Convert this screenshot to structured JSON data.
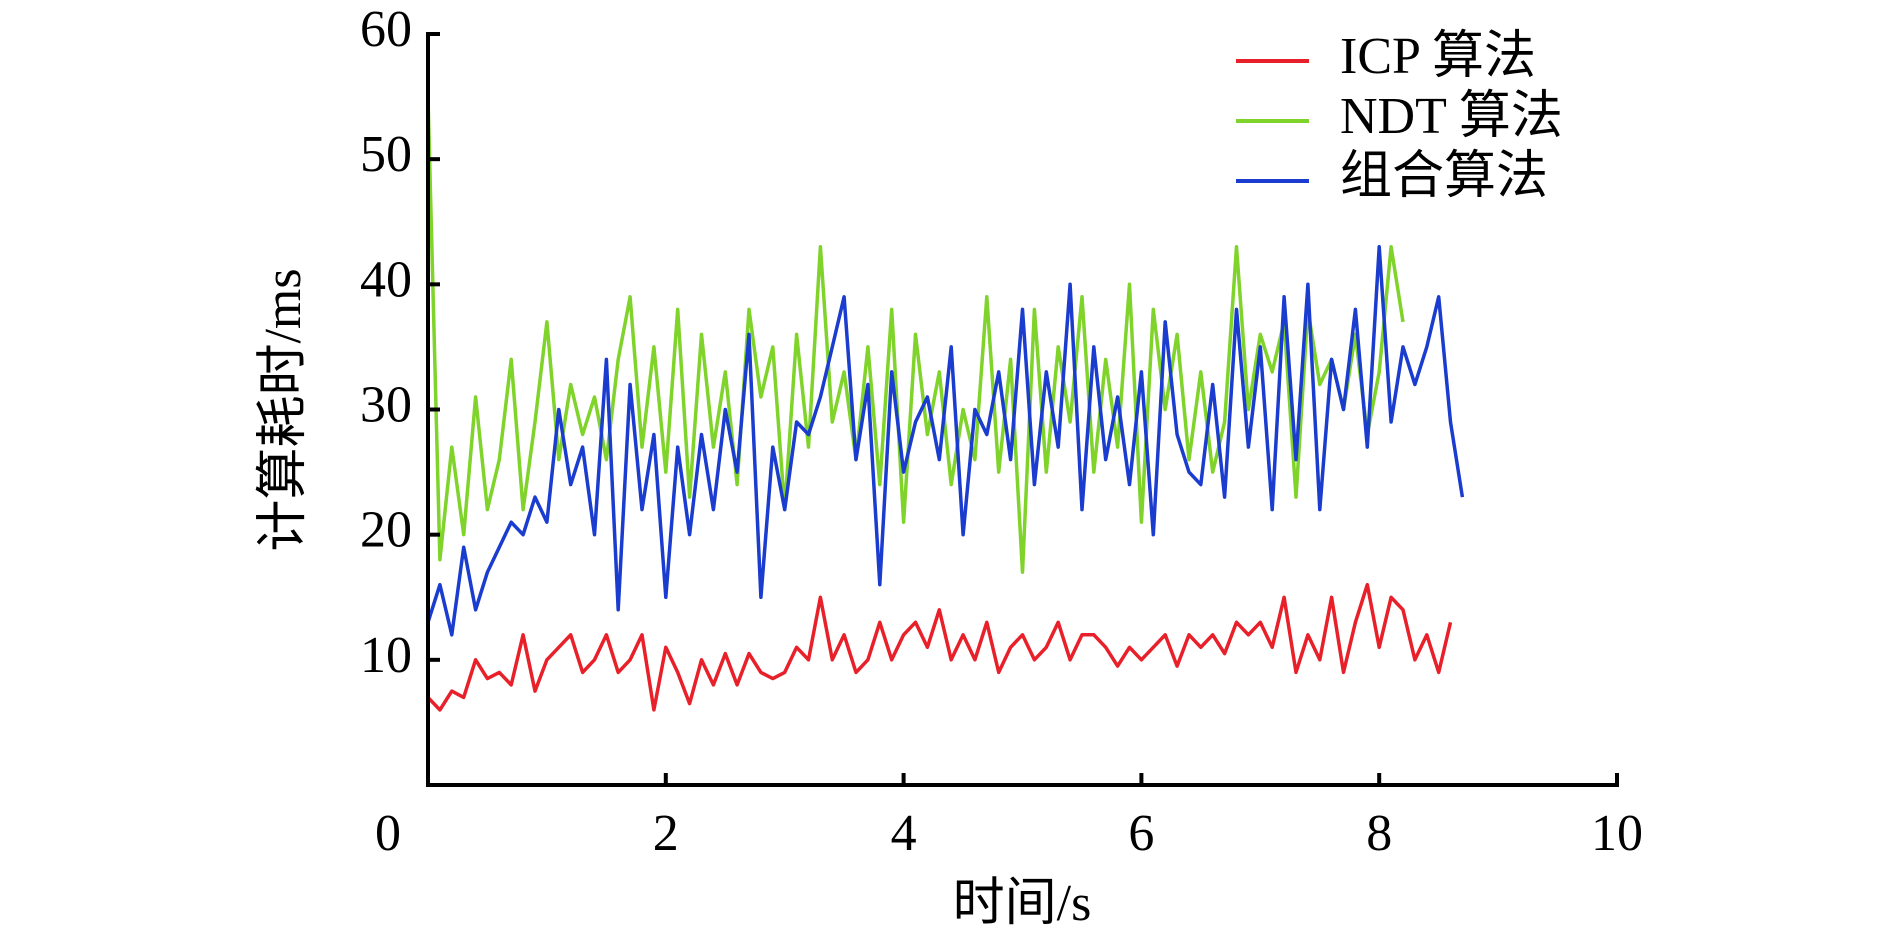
{
  "chart_data": {
    "type": "line",
    "xlabel": "时间/s",
    "ylabel": "计算耗时/ms",
    "x": [
      0,
      0.1,
      0.2,
      0.3,
      0.4,
      0.5,
      0.6,
      0.7,
      0.8,
      0.9,
      1,
      1.1,
      1.2,
      1.3,
      1.4,
      1.5,
      1.6,
      1.7,
      1.8,
      1.9,
      2,
      2.1,
      2.2,
      2.3,
      2.4,
      2.5,
      2.6,
      2.7,
      2.8,
      2.9,
      3,
      3.1,
      3.2,
      3.3,
      3.4,
      3.5,
      3.6,
      3.7,
      3.8,
      3.9,
      4,
      4.1,
      4.2,
      4.3,
      4.4,
      4.5,
      4.6,
      4.7,
      4.8,
      4.9,
      5,
      5.1,
      5.2,
      5.3,
      5.4,
      5.5,
      5.6,
      5.7,
      5.8,
      5.9,
      6,
      6.1,
      6.2,
      6.3,
      6.4,
      6.5,
      6.6,
      6.7,
      6.8,
      6.9,
      7,
      7.1,
      7.2,
      7.3,
      7.4,
      7.5,
      7.6,
      7.7,
      7.8,
      7.9,
      8,
      8.1,
      8.2,
      8.3,
      8.4,
      8.5,
      8.6,
      8.7
    ],
    "series": [
      {
        "name": "ICP 算法",
        "color": "#e8202a",
        "values": [
          7,
          6,
          7.5,
          7,
          10,
          8.5,
          9,
          8,
          12,
          7.5,
          10,
          11,
          12,
          9,
          10,
          12,
          9,
          10,
          12,
          6,
          11,
          9,
          6.5,
          10,
          8,
          10.5,
          8,
          10.5,
          9,
          8.5,
          9,
          11,
          10,
          15,
          10,
          12,
          9,
          10,
          13,
          10,
          12,
          13,
          11,
          14,
          10,
          12,
          10,
          13,
          9,
          11,
          12,
          10,
          11,
          13,
          10,
          12,
          12,
          11,
          9.5,
          11,
          10,
          11,
          12,
          9.5,
          12,
          11,
          12,
          10.5,
          13,
          12,
          13,
          11,
          15,
          9,
          12,
          10,
          15,
          9,
          13,
          16,
          11,
          15,
          14,
          10,
          12,
          9,
          13,
          null
        ]
      },
      {
        "name": "NDT 算法",
        "color": "#7fd32a",
        "values": [
          55,
          18,
          27,
          20,
          31,
          22,
          26,
          34,
          22,
          29,
          37,
          26,
          32,
          28,
          31,
          26,
          34,
          39,
          27,
          35,
          25,
          38,
          23,
          36,
          27,
          33,
          24,
          38,
          31,
          35,
          22,
          36,
          27,
          43,
          29,
          33,
          26,
          35,
          24,
          38,
          21,
          36,
          28,
          33,
          24,
          30,
          26,
          39,
          25,
          34,
          17,
          38,
          25,
          35,
          29,
          39,
          25,
          34,
          27,
          40,
          21,
          38,
          30,
          36,
          26,
          33,
          25,
          29,
          43,
          30,
          36,
          33,
          37,
          23,
          38,
          32,
          34,
          30,
          36,
          28,
          33,
          43,
          37,
          null,
          null,
          null,
          null,
          null
        ]
      },
      {
        "name": "组合算法",
        "color": "#1a3ccf",
        "values": [
          13,
          16,
          12,
          19,
          14,
          17,
          19,
          21,
          20,
          23,
          21,
          30,
          24,
          27,
          20,
          34,
          14,
          32,
          22,
          28,
          15,
          27,
          20,
          28,
          22,
          30,
          25,
          36,
          15,
          27,
          22,
          29,
          28,
          31,
          35,
          39,
          26,
          32,
          16,
          33,
          25,
          29,
          31,
          26,
          35,
          20,
          30,
          28,
          33,
          26,
          38,
          24,
          33,
          27,
          40,
          22,
          35,
          26,
          31,
          24,
          33,
          20,
          37,
          28,
          25,
          24,
          32,
          23,
          38,
          27,
          35,
          22,
          39,
          26,
          40,
          22,
          34,
          30,
          38,
          27,
          43,
          29,
          35,
          32,
          35,
          39,
          29,
          23
        ]
      }
    ],
    "xlim": [
      0,
      10
    ],
    "xticks": [
      0,
      2,
      4,
      6,
      8,
      10
    ],
    "ylim": [
      0,
      60
    ],
    "yticks": [
      10,
      20,
      30,
      40,
      50,
      60
    ],
    "legend": "upper right"
  }
}
